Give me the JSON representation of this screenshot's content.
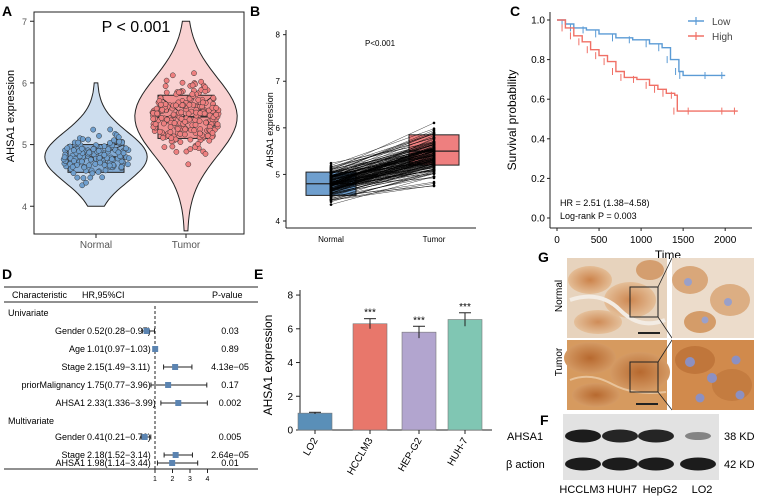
{
  "figure": {
    "panel_letters": [
      "A",
      "B",
      "C",
      "D",
      "E",
      "F",
      "G"
    ]
  },
  "colors": {
    "normal": "#6f9fce",
    "tumor": "#ee7f7f",
    "low": "#5b9bd5",
    "high": "#f07066",
    "bar_lo2": "#5a8fb8",
    "bar_hcclm3": "#e8776b",
    "bar_hepg2": "#b2a5cf",
    "bar_huh7": "#80c6b3",
    "forest_box": "#5b84b1"
  },
  "panel_a": {
    "pvalue_text": "P < 0.001",
    "ylabel": "AHSA1 expression",
    "yticks": [
      4,
      5,
      6,
      7
    ],
    "groups": [
      "Normal",
      "Tumor"
    ],
    "ylim": [
      3.55,
      7.15
    ],
    "normal": {
      "q1": 4.55,
      "median": 4.8,
      "q3": 5.0,
      "whisker_low": 4.0,
      "whisker_high": 6.0
    },
    "tumor": {
      "q1": 5.1,
      "median": 5.45,
      "q3": 5.8,
      "whisker_low": 3.6,
      "whisker_high": 7.0
    }
  },
  "panel_b": {
    "pvalue_text": "P<0.001",
    "ylabel": "AHSA1 expression",
    "yticks": [
      4,
      5,
      6,
      7,
      8
    ],
    "groups": [
      "Normal",
      "Tumor"
    ],
    "ylim": [
      3.85,
      8.1
    ],
    "normal": {
      "q1": 4.55,
      "median": 4.8,
      "q3": 5.05,
      "whisker_low": 4.0,
      "whisker_high": 6.3
    },
    "tumor": {
      "q1": 5.2,
      "median": 5.5,
      "q3": 5.85,
      "whisker_low": 4.1,
      "whisker_high": 7.0
    }
  },
  "panel_c": {
    "ylabel": "Survival probability",
    "xlabel": "Time",
    "yticks": [
      "0.0",
      "0.2",
      "0.4",
      "0.6",
      "0.8",
      "1.0"
    ],
    "xticks": [
      "0",
      "500",
      "1000",
      "1500",
      "2000"
    ],
    "legend": [
      {
        "label": "Low",
        "color": "#5b9bd5"
      },
      {
        "label": "High",
        "color": "#f07066"
      }
    ],
    "annotation_hr": "HR = 2.51 (1.38−4.58)",
    "annotation_logrank": "Log-rank P = 0.003",
    "chart_data": {
      "type": "line",
      "xlim": [
        0,
        2200
      ],
      "ylim": [
        0,
        1
      ],
      "series": [
        {
          "name": "Low",
          "x": [
            0,
            100,
            200,
            350,
            500,
            700,
            900,
            1100,
            1250,
            1350,
            1450,
            1500,
            1800,
            2000
          ],
          "y": [
            1.0,
            0.98,
            0.96,
            0.95,
            0.93,
            0.91,
            0.9,
            0.88,
            0.86,
            0.8,
            0.74,
            0.72,
            0.72,
            0.72
          ]
        },
        {
          "name": "High",
          "x": [
            0,
            100,
            200,
            300,
            400,
            500,
            600,
            700,
            800,
            950,
            1100,
            1200,
            1300,
            1400,
            1430,
            1600,
            2000,
            2150
          ],
          "y": [
            1.0,
            0.96,
            0.92,
            0.89,
            0.85,
            0.82,
            0.79,
            0.74,
            0.71,
            0.7,
            0.67,
            0.65,
            0.63,
            0.62,
            0.54,
            0.54,
            0.54,
            0.54
          ]
        }
      ]
    }
  },
  "panel_d": {
    "header": {
      "characteristic": "Characteristic",
      "hr": "HR,95%CI",
      "pvalue": "P-value"
    },
    "univariate_label": "Univariate",
    "multivariate_label": "Multivariate",
    "xticks": [
      "1",
      "2",
      "3",
      "4"
    ],
    "univariate": [
      {
        "name": "Gender",
        "hr_text": "0.52(0.28−0.97)",
        "p": "0.03",
        "hr": 0.52,
        "lo": 0.28,
        "hi": 0.97
      },
      {
        "name": "Age",
        "hr_text": "1.01(0.97−1.03)",
        "p": "0.89",
        "hr": 1.01,
        "lo": 0.97,
        "hi": 1.03
      },
      {
        "name": "Stage",
        "hr_text": "2.15(1.49−3.11)",
        "p": "4.13e−05",
        "hr": 2.15,
        "lo": 1.49,
        "hi": 3.11
      },
      {
        "name": "priorMalignancy",
        "hr_text": "1.75(0.77−3.96)",
        "p": "0.17",
        "hr": 1.75,
        "lo": 0.77,
        "hi": 3.96
      },
      {
        "name": "AHSA1",
        "hr_text": "2.33(1.336−3.99)",
        "p": "0.002",
        "hr": 2.33,
        "lo": 1.336,
        "hi": 3.99
      }
    ],
    "multivariate": [
      {
        "name": "Gender",
        "hr_text": "0.41(0.21−0.76)",
        "p": "0.005",
        "hr": 0.41,
        "lo": 0.21,
        "hi": 0.76
      },
      {
        "name": "Stage",
        "hr_text": "2.18(1.52−3.14)",
        "p": "2.64e−05",
        "hr": 2.18,
        "lo": 1.52,
        "hi": 3.14
      },
      {
        "name": "AHSA1",
        "hr_text": "1.98(1.14−3.44)",
        "p": "0.01",
        "hr": 1.98,
        "lo": 1.14,
        "hi": 3.44
      }
    ]
  },
  "panel_e": {
    "ylabel": "AHSA1 expression",
    "yticks": [
      "0",
      "2",
      "4",
      "6",
      "8"
    ],
    "chart_data": {
      "type": "bar",
      "categories": [
        "LO2",
        "HCCLM3",
        "HEP-G2",
        "HUH-7"
      ],
      "values": [
        1.0,
        6.3,
        5.8,
        6.55
      ],
      "errors": [
        0.05,
        0.3,
        0.35,
        0.4
      ],
      "significance": [
        "",
        "***",
        "***",
        "***"
      ],
      "ylim": [
        0,
        8.3
      ]
    }
  },
  "panel_g": {
    "row_labels": [
      "Normal",
      "Tumor"
    ]
  },
  "panel_f": {
    "rows": [
      {
        "label": "AHSA1",
        "size": "38 KD",
        "intensity": [
          0.95,
          0.9,
          0.9,
          0.45
        ]
      },
      {
        "label": "β action",
        "size": "42 KD",
        "intensity": [
          0.95,
          0.95,
          0.95,
          0.95
        ]
      }
    ],
    "lanes": [
      "HCCLM3",
      "HUH7",
      "HepG2",
      "LO2"
    ]
  }
}
